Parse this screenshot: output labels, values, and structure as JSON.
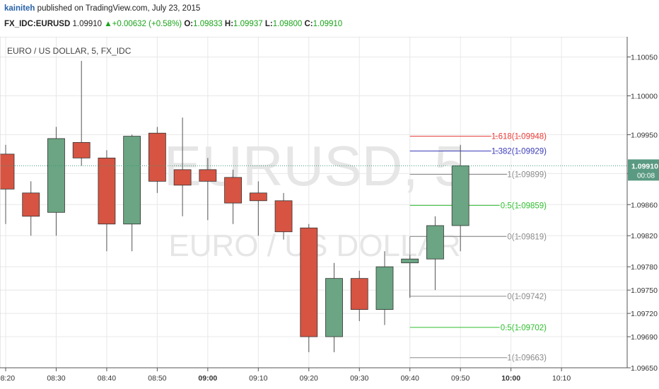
{
  "header": {
    "author": "kainiteh",
    "published_text": "published on TradingView.com, July 23, 2015",
    "symbol": "FX_IDC:EURUSD",
    "last": "1.09910",
    "change": "+0.00632 (+0.58%)",
    "open_label": "O:",
    "open": "1.09833",
    "high_label": "H:",
    "high": "1.09937",
    "low_label": "L:",
    "low": "1.09800",
    "close_label": "C:",
    "close": "1.09910"
  },
  "chart_data": {
    "type": "candlestick",
    "pane_title": "EURO / US DOLLAR, 5, FX_IDC",
    "watermark_symbol": "EURUSD, 5",
    "watermark_name": "EURO / US DOLLAR",
    "ylim": [
      1.0965,
      1.10076
    ],
    "xlim_minutes": [
      500,
      623
    ],
    "y_ticks": [
      "1.10050",
      "1.10000",
      "1.09950",
      "1.09900",
      "1.09860",
      "1.09820",
      "1.09780",
      "1.09750",
      "1.09720",
      "1.09690",
      "1.09650"
    ],
    "x_ticks": [
      {
        "label": "08:20",
        "min": 500
      },
      {
        "label": "08:30",
        "min": 510
      },
      {
        "label": "08:40",
        "min": 520
      },
      {
        "label": "08:50",
        "min": 530
      },
      {
        "label": "09:00",
        "min": 540,
        "bold": true
      },
      {
        "label": "09:10",
        "min": 550
      },
      {
        "label": "09:20",
        "min": 560
      },
      {
        "label": "09:30",
        "min": 570
      },
      {
        "label": "09:40",
        "min": 580
      },
      {
        "label": "09:50",
        "min": 590
      },
      {
        "label": "10:00",
        "min": 600,
        "bold": true
      },
      {
        "label": "10:10",
        "min": 610
      }
    ],
    "candles": [
      {
        "t": 500,
        "o": 1.09925,
        "h": 1.09937,
        "l": 1.09835,
        "c": 1.0988
      },
      {
        "t": 505,
        "o": 1.09875,
        "h": 1.0989,
        "l": 1.0982,
        "c": 1.09845
      },
      {
        "t": 510,
        "o": 1.0985,
        "h": 1.0996,
        "l": 1.0982,
        "c": 1.09945
      },
      {
        "t": 515,
        "o": 1.0994,
        "h": 1.10045,
        "l": 1.0991,
        "c": 1.0992
      },
      {
        "t": 520,
        "o": 1.0992,
        "h": 1.0993,
        "l": 1.098,
        "c": 1.09835
      },
      {
        "t": 525,
        "o": 1.09835,
        "h": 1.0995,
        "l": 1.098,
        "c": 1.09948
      },
      {
        "t": 530,
        "o": 1.09952,
        "h": 1.0996,
        "l": 1.09875,
        "c": 1.0989
      },
      {
        "t": 535,
        "o": 1.09905,
        "h": 1.09972,
        "l": 1.09845,
        "c": 1.09885
      },
      {
        "t": 540,
        "o": 1.09905,
        "h": 1.0992,
        "l": 1.0984,
        "c": 1.0989
      },
      {
        "t": 545,
        "o": 1.09895,
        "h": 1.09905,
        "l": 1.09835,
        "c": 1.09862
      },
      {
        "t": 550,
        "o": 1.09875,
        "h": 1.0989,
        "l": 1.0982,
        "c": 1.09865
      },
      {
        "t": 555,
        "o": 1.09865,
        "h": 1.09875,
        "l": 1.09815,
        "c": 1.09825
      },
      {
        "t": 560,
        "o": 1.0983,
        "h": 1.09835,
        "l": 1.0967,
        "c": 1.0969
      },
      {
        "t": 565,
        "o": 1.0969,
        "h": 1.09785,
        "l": 1.0967,
        "c": 1.09765
      },
      {
        "t": 570,
        "o": 1.09765,
        "h": 1.09775,
        "l": 1.0971,
        "c": 1.09725
      },
      {
        "t": 575,
        "o": 1.09725,
        "h": 1.098,
        "l": 1.09705,
        "c": 1.0978
      },
      {
        "t": 580,
        "o": 1.09785,
        "h": 1.09795,
        "l": 1.0974,
        "c": 1.0979
      },
      {
        "t": 585,
        "o": 1.0979,
        "h": 1.09845,
        "l": 1.0975,
        "c": 1.09833
      },
      {
        "t": 590,
        "o": 1.09833,
        "h": 1.09937,
        "l": 1.098,
        "c": 1.0991
      }
    ],
    "fib_levels": [
      {
        "label": "1.618(1.09948)",
        "value": 1.09948,
        "color": "#e53935"
      },
      {
        "label": "1.382(1.09929)",
        "value": 1.09929,
        "color": "#3a3ab8"
      },
      {
        "label": "1(1.09899)",
        "value": 1.09899,
        "color": "#8a8a8a"
      },
      {
        "label": "0.5(1.09859)",
        "value": 1.09859,
        "color": "#2ebd2e"
      },
      {
        "label": "0(1.09819)",
        "value": 1.09819,
        "color": "#8a8a8a"
      },
      {
        "label": "0(1.09742)",
        "value": 1.09742,
        "color": "#8a8a8a"
      },
      {
        "label": "0.5(1.09702)",
        "value": 1.09702,
        "color": "#2ebd2e"
      },
      {
        "label": "1(1.09663)",
        "value": 1.09663,
        "color": "#8a8a8a"
      }
    ],
    "fib_anchor_min": 580,
    "fib_anchor_low": 1.09742,
    "fib_anchor_high": 1.09819,
    "last_price": {
      "value": 1.0991,
      "label": "1.09910",
      "countdown": "00:08"
    },
    "colors": {
      "up": "#6ba583",
      "down": "#d75442",
      "grid": "#e8e8e8",
      "last_line": "#3a9a7a"
    }
  }
}
